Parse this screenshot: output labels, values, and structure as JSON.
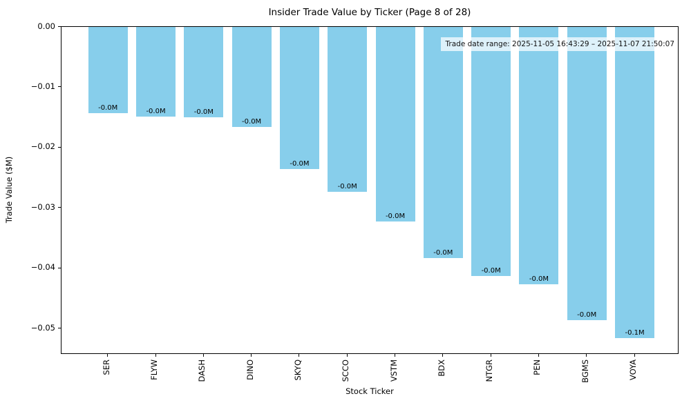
{
  "chart_data": {
    "type": "bar",
    "title": "Insider Trade Value by Ticker (Page 8 of 28)",
    "xlabel": "Stock Ticker",
    "ylabel": "Trade Value ($M)",
    "categories": [
      "SER",
      "FLYW",
      "DASH",
      "DINO",
      "SKYQ",
      "SCCO",
      "VSTM",
      "BDX",
      "NTGR",
      "PEN",
      "BGMS",
      "VOYA"
    ],
    "values": [
      -0.0143,
      -0.0149,
      -0.015,
      -0.0166,
      -0.0236,
      -0.0273,
      -0.0322,
      -0.0383,
      -0.0413,
      -0.0426,
      -0.0486,
      -0.0516
    ],
    "bar_labels": [
      "-0.0M",
      "-0.0M",
      "-0.0M",
      "-0.0M",
      "-0.0M",
      "-0.0M",
      "-0.0M",
      "-0.0M",
      "-0.0M",
      "-0.0M",
      "-0.0M",
      "-0.1M"
    ],
    "ytick_values": [
      0.0,
      -0.01,
      -0.02,
      -0.03,
      -0.04,
      -0.05
    ],
    "ytick_labels": [
      "0.00",
      "−0.01",
      "−0.02",
      "−0.03",
      "−0.04",
      "−0.05"
    ],
    "ylim": [
      -0.0543,
      0.0
    ],
    "bar_color": "#87CEEB",
    "annotation": "Trade date range: 2025-11-05 16:43:29 – 2025-11-07 21:50:07",
    "grid": false,
    "legend": null
  }
}
